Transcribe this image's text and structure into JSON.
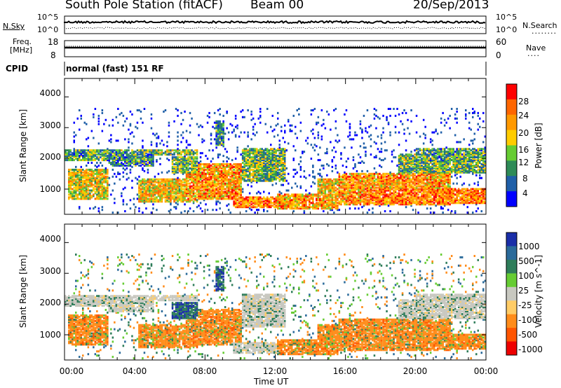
{
  "header": {
    "station": "South Pole Station (fitACF)",
    "beam": "Beam 00",
    "date": "20/Sep/2013"
  },
  "noise_panel": {
    "left_label": "N.Sky",
    "right_label": "N.Search",
    "left_ticks": [
      "10^5",
      "10^0"
    ],
    "right_ticks": [
      "10^5",
      "10^0"
    ]
  },
  "freq_panel": {
    "left_label_line1": "Freq.",
    "left_label_line2": "[MHz]",
    "right_label": "Nave",
    "left_ticks": [
      "18",
      "8"
    ],
    "right_ticks": [
      "60",
      "0"
    ]
  },
  "cpid_panel": {
    "label": "CPID",
    "text": "normal (fast) 151 RF"
  },
  "chart_data": [
    {
      "type": "heatmap",
      "name": "power",
      "ylabel": "Slant Range [km]",
      "y_ticks": [
        1000,
        2000,
        3000,
        4000
      ],
      "ylim": [
        180,
        4600
      ],
      "colorbar_label": "Power [dB]",
      "colorbar_ticks": [
        4,
        8,
        12,
        16,
        20,
        24,
        28
      ],
      "colorbar_range": [
        0,
        30
      ],
      "colors": [
        "#0000ff",
        "#1f5fa8",
        "#2e8b57",
        "#66cc33",
        "#ffcc00",
        "#ff9900",
        "#ff6600",
        "#ff0000"
      ]
    },
    {
      "type": "heatmap",
      "name": "velocity",
      "ylabel": "Slant Range [km]",
      "y_ticks": [
        1000,
        2000,
        3000,
        4000
      ],
      "ylim": [
        180,
        4600
      ],
      "colorbar_label": "Velocity [m s^-1]",
      "colorbar_ticks": [
        "1000",
        "500",
        "100",
        "25",
        "-25",
        "-100",
        "-500",
        "-1000"
      ],
      "colors": [
        "#1a2ea8",
        "#2a6a9a",
        "#2e7d5a",
        "#66cc33",
        "#c8c8c0",
        "#ffcc66",
        "#ff8c1a",
        "#ff5500",
        "#ee0000"
      ]
    }
  ],
  "x_axis": {
    "label": "Time UT",
    "ticks": [
      "00:00",
      "04:00",
      "08:00",
      "12:00",
      "16:00",
      "20:00",
      "00:00"
    ]
  }
}
